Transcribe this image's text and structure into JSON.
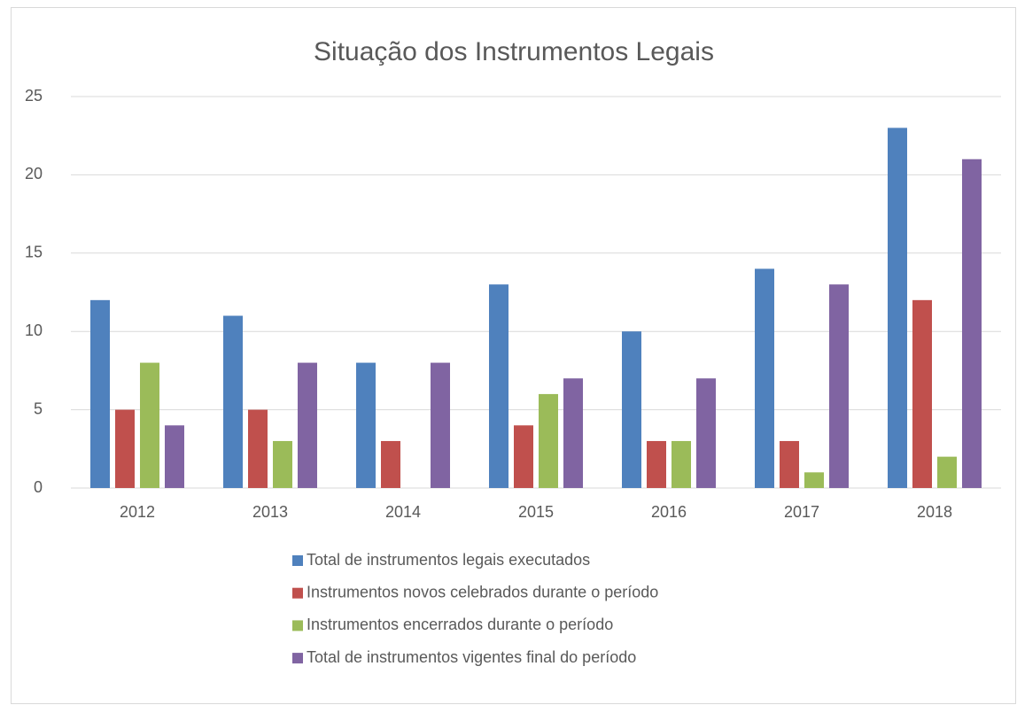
{
  "chart_data": {
    "type": "bar",
    "title": "Situação dos Instrumentos Legais",
    "categories": [
      "2012",
      "2013",
      "2014",
      "2015",
      "2016",
      "2017",
      "2018"
    ],
    "series": [
      {
        "name": "Total de instrumentos legais executados",
        "color": "#4f81bd",
        "values": [
          12,
          11,
          8,
          13,
          10,
          14,
          23
        ]
      },
      {
        "name": "Instrumentos novos celebrados durante o período",
        "color": "#c0504d",
        "values": [
          5,
          5,
          3,
          4,
          3,
          3,
          12
        ]
      },
      {
        "name": "Instrumentos encerrados durante o período",
        "color": "#9bbb59",
        "values": [
          8,
          3,
          0,
          6,
          3,
          1,
          2
        ]
      },
      {
        "name": "Total de instrumentos vigentes final do período",
        "color": "#8064a2",
        "values": [
          4,
          8,
          8,
          7,
          7,
          13,
          21
        ]
      }
    ],
    "ylim": [
      0,
      25
    ],
    "yticks": [
      0,
      5,
      10,
      15,
      20,
      25
    ],
    "grid": true,
    "legend": "bottom"
  }
}
